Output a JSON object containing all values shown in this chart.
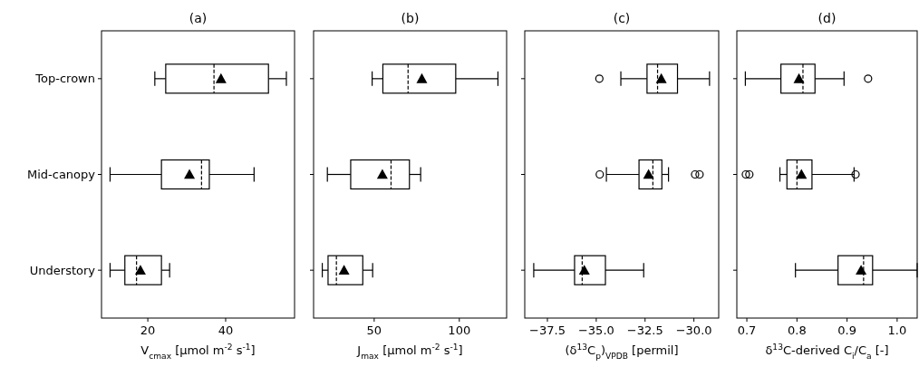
{
  "chart_data": [
    {
      "type": "box",
      "orientation": "horizontal",
      "title": "(a)",
      "xlabel": "V$_{cmax}$ [μmol m$^{-2}$ s$^{-1}$]",
      "categories": [
        "Top-crown",
        "Mid-canopy",
        "Understory"
      ],
      "marker": "triangle",
      "xlim": [
        8.1,
        57.7
      ],
      "xticks": [
        20,
        40
      ],
      "boxes": [
        {
          "low": 21.8,
          "q1": 24.6,
          "median": 37.0,
          "q3": 51.0,
          "high": 55.6,
          "mean": 38.8
        },
        {
          "low": 10.3,
          "q1": 23.5,
          "median": 33.8,
          "q3": 35.8,
          "high": 47.3,
          "mean": 30.7
        },
        {
          "low": 10.3,
          "q1": 14.1,
          "median": 17.1,
          "q3": 23.5,
          "high": 25.6,
          "mean": 18.1
        }
      ]
    },
    {
      "type": "box",
      "orientation": "horizontal",
      "title": "(b)",
      "xlabel": "J$_{max}$ [μmol m$^{-2}$ s$^{-1}$]",
      "categories": [
        null,
        null,
        null
      ],
      "marker": "triangle",
      "tick_labels": "x",
      "xlim": [
        14.4,
        127.8
      ],
      "xticks": [
        50,
        100
      ],
      "boxes": [
        {
          "low": 48.8,
          "q1": 55.1,
          "median": 69.9,
          "q3": 97.9,
          "high": 122.7,
          "mean": 78.0
        },
        {
          "low": 22.5,
          "q1": 36.2,
          "median": 59.9,
          "q3": 70.7,
          "high": 77.3,
          "mean": 54.8
        },
        {
          "low": 19.5,
          "q1": 22.9,
          "median": 27.8,
          "q3": 43.3,
          "high": 49.1,
          "mean": 32.3
        }
      ]
    },
    {
      "type": "box",
      "orientation": "horizontal",
      "title": "(c)",
      "xlabel": "(δ$^{13}$C$_{p}$)$_{VPDB}$ [permil]",
      "categories": [
        null,
        null,
        null
      ],
      "marker": "triangle",
      "tick_labels": "x",
      "xlim": [
        -38.66,
        -28.73
      ],
      "xticks": [
        {
          "value": -37.5,
          "label": "−37.5"
        },
        {
          "value": -35,
          "label": "−35.0"
        },
        {
          "value": -32.5,
          "label": "−32.5"
        },
        {
          "value": -30,
          "label": "−30.0"
        }
      ],
      "boxes": [
        {
          "low": -33.74,
          "q1": -32.4,
          "median": -31.86,
          "q3": -30.84,
          "high": -29.2,
          "mean": -31.67,
          "outliers": [
            -34.84
          ]
        },
        {
          "low": -34.48,
          "q1": -32.81,
          "median": -32.1,
          "q3": -31.64,
          "high": -31.3,
          "mean": -32.32,
          "outliers": [
            -34.82,
            -29.94,
            -29.71
          ]
        },
        {
          "low": -38.2,
          "q1": -36.11,
          "median": -35.72,
          "q3": -34.53,
          "high": -32.57,
          "mean": -35.61
        }
      ]
    },
    {
      "type": "box",
      "orientation": "horizontal",
      "title": "(d)",
      "xlabel": "δ$^{13}$C-derived C$_{i}$/C$_{a}$ [-]",
      "categories": [
        null,
        null,
        null
      ],
      "marker": "triangle",
      "tick_labels": "x",
      "xlim": [
        0.68,
        1.04
      ],
      "xticks": [
        0.7,
        0.8,
        0.9,
        {
          "value": 1,
          "label": "1.0"
        }
      ],
      "boxes": [
        {
          "low": 0.697,
          "q1": 0.768,
          "median": 0.812,
          "q3": 0.836,
          "high": 0.894,
          "mean": 0.804,
          "outliers": [
            0.942
          ]
        },
        {
          "low": 0.766,
          "q1": 0.78,
          "median": 0.8,
          "q3": 0.83,
          "high": 0.914,
          "mean": 0.809,
          "outliers": [
            0.698,
            0.705,
            0.917
          ]
        },
        {
          "low": 0.797,
          "q1": 0.882,
          "median": 0.933,
          "q3": 0.951,
          "high": 1.04,
          "mean": 0.928
        }
      ]
    }
  ]
}
